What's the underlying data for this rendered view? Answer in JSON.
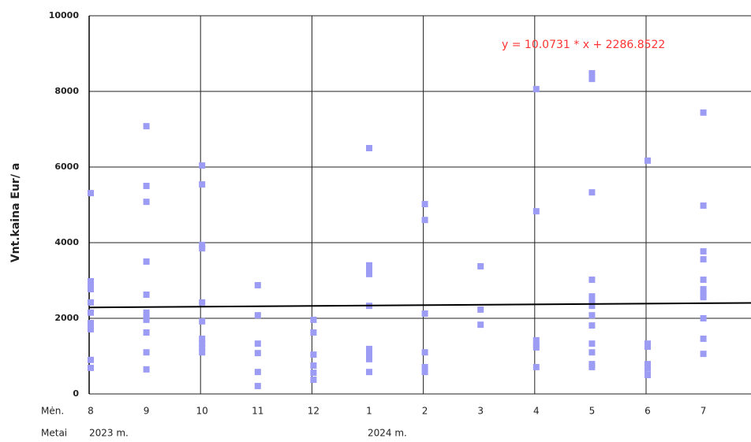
{
  "chart_data": {
    "type": "scatter",
    "y_label": "Vnt.kaina Eur/ a",
    "x_row_label": "Mėn.",
    "year_row_label": "Metai",
    "categories": [
      "8",
      "9",
      "10",
      "11",
      "12",
      "1",
      "2",
      "3",
      "4",
      "5",
      "6",
      "7"
    ],
    "years": [
      "2023 m.",
      null,
      null,
      null,
      null,
      "2024 m.",
      null,
      null,
      null,
      null,
      null,
      null
    ],
    "ylim": [
      0,
      10000
    ],
    "yticks": [
      0,
      2000,
      4000,
      6000,
      8000,
      10000
    ],
    "grid": true,
    "series": [
      {
        "color": "#9c9cf4",
        "values": [
          [
            5310,
            2980,
            2875,
            2770,
            2420,
            2150,
            1875,
            1790,
            1710,
            900,
            690
          ],
          [
            7080,
            5500,
            5080,
            3500,
            2625,
            2150,
            2020,
            1960,
            1625,
            1100,
            650
          ],
          [
            6040,
            5540,
            3940,
            3850,
            2420,
            1920,
            1460,
            1330,
            1230,
            1100
          ],
          [
            2875,
            2080,
            1330,
            1080,
            580,
            210
          ],
          [
            1960,
            1625,
            1040,
            750,
            560,
            375
          ],
          [
            6500,
            3400,
            3310,
            3170,
            2330,
            1190,
            1060,
            920,
            580
          ],
          [
            5020,
            4600,
            2125,
            1100,
            710,
            580
          ],
          [
            3375,
            2230,
            1830
          ],
          [
            8060,
            4830,
            1420,
            1290,
            1230,
            710
          ],
          [
            8480,
            8330,
            5330,
            3020,
            2580,
            2460,
            2330,
            2080,
            1810,
            1330,
            1100,
            790,
            710
          ],
          [
            6170,
            1330,
            1250,
            790,
            670,
            500
          ],
          [
            7440,
            4980,
            3770,
            3560,
            3020,
            2770,
            2650,
            2560,
            2000,
            1460,
            1060
          ]
        ]
      }
    ],
    "trendline": {
      "slope": 10.0731,
      "intercept": 2286.8522,
      "color": "#ff3333",
      "label": "y = 10.0731 * x + 2286.8522"
    }
  }
}
